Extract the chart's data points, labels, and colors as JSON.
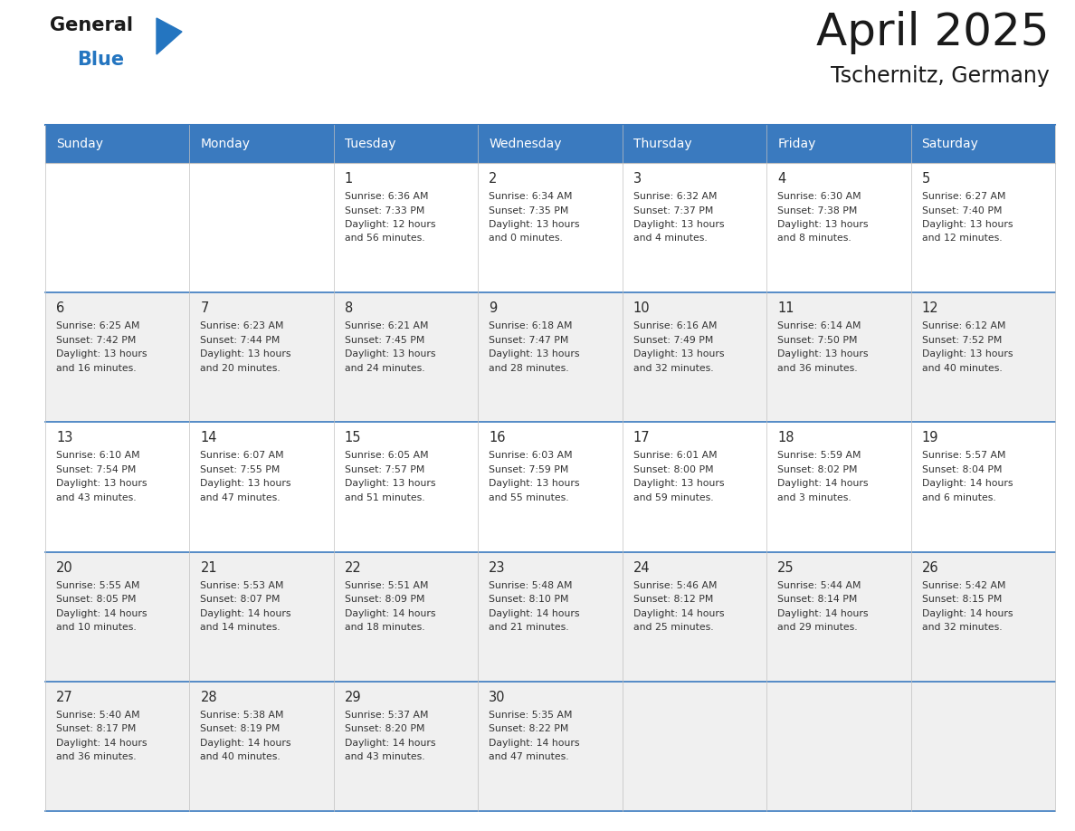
{
  "title": "April 2025",
  "subtitle": "Tschernitz, Germany",
  "header_bg_color": "#3a7abf",
  "header_text_color": "#ffffff",
  "week_bg_colors": [
    "#ffffff",
    "#f0f0f0",
    "#ffffff",
    "#f0f0f0",
    "#f0f0f0"
  ],
  "text_color": "#333333",
  "day_num_color": "#2a2a2a",
  "line_color_blue": "#3a7abf",
  "line_color_light": "#c0c0c0",
  "days_of_week": [
    "Sunday",
    "Monday",
    "Tuesday",
    "Wednesday",
    "Thursday",
    "Friday",
    "Saturday"
  ],
  "weeks": [
    [
      {
        "day": "",
        "info": ""
      },
      {
        "day": "",
        "info": ""
      },
      {
        "day": "1",
        "info": "Sunrise: 6:36 AM\nSunset: 7:33 PM\nDaylight: 12 hours\nand 56 minutes."
      },
      {
        "day": "2",
        "info": "Sunrise: 6:34 AM\nSunset: 7:35 PM\nDaylight: 13 hours\nand 0 minutes."
      },
      {
        "day": "3",
        "info": "Sunrise: 6:32 AM\nSunset: 7:37 PM\nDaylight: 13 hours\nand 4 minutes."
      },
      {
        "day": "4",
        "info": "Sunrise: 6:30 AM\nSunset: 7:38 PM\nDaylight: 13 hours\nand 8 minutes."
      },
      {
        "day": "5",
        "info": "Sunrise: 6:27 AM\nSunset: 7:40 PM\nDaylight: 13 hours\nand 12 minutes."
      }
    ],
    [
      {
        "day": "6",
        "info": "Sunrise: 6:25 AM\nSunset: 7:42 PM\nDaylight: 13 hours\nand 16 minutes."
      },
      {
        "day": "7",
        "info": "Sunrise: 6:23 AM\nSunset: 7:44 PM\nDaylight: 13 hours\nand 20 minutes."
      },
      {
        "day": "8",
        "info": "Sunrise: 6:21 AM\nSunset: 7:45 PM\nDaylight: 13 hours\nand 24 minutes."
      },
      {
        "day": "9",
        "info": "Sunrise: 6:18 AM\nSunset: 7:47 PM\nDaylight: 13 hours\nand 28 minutes."
      },
      {
        "day": "10",
        "info": "Sunrise: 6:16 AM\nSunset: 7:49 PM\nDaylight: 13 hours\nand 32 minutes."
      },
      {
        "day": "11",
        "info": "Sunrise: 6:14 AM\nSunset: 7:50 PM\nDaylight: 13 hours\nand 36 minutes."
      },
      {
        "day": "12",
        "info": "Sunrise: 6:12 AM\nSunset: 7:52 PM\nDaylight: 13 hours\nand 40 minutes."
      }
    ],
    [
      {
        "day": "13",
        "info": "Sunrise: 6:10 AM\nSunset: 7:54 PM\nDaylight: 13 hours\nand 43 minutes."
      },
      {
        "day": "14",
        "info": "Sunrise: 6:07 AM\nSunset: 7:55 PM\nDaylight: 13 hours\nand 47 minutes."
      },
      {
        "day": "15",
        "info": "Sunrise: 6:05 AM\nSunset: 7:57 PM\nDaylight: 13 hours\nand 51 minutes."
      },
      {
        "day": "16",
        "info": "Sunrise: 6:03 AM\nSunset: 7:59 PM\nDaylight: 13 hours\nand 55 minutes."
      },
      {
        "day": "17",
        "info": "Sunrise: 6:01 AM\nSunset: 8:00 PM\nDaylight: 13 hours\nand 59 minutes."
      },
      {
        "day": "18",
        "info": "Sunrise: 5:59 AM\nSunset: 8:02 PM\nDaylight: 14 hours\nand 3 minutes."
      },
      {
        "day": "19",
        "info": "Sunrise: 5:57 AM\nSunset: 8:04 PM\nDaylight: 14 hours\nand 6 minutes."
      }
    ],
    [
      {
        "day": "20",
        "info": "Sunrise: 5:55 AM\nSunset: 8:05 PM\nDaylight: 14 hours\nand 10 minutes."
      },
      {
        "day": "21",
        "info": "Sunrise: 5:53 AM\nSunset: 8:07 PM\nDaylight: 14 hours\nand 14 minutes."
      },
      {
        "day": "22",
        "info": "Sunrise: 5:51 AM\nSunset: 8:09 PM\nDaylight: 14 hours\nand 18 minutes."
      },
      {
        "day": "23",
        "info": "Sunrise: 5:48 AM\nSunset: 8:10 PM\nDaylight: 14 hours\nand 21 minutes."
      },
      {
        "day": "24",
        "info": "Sunrise: 5:46 AM\nSunset: 8:12 PM\nDaylight: 14 hours\nand 25 minutes."
      },
      {
        "day": "25",
        "info": "Sunrise: 5:44 AM\nSunset: 8:14 PM\nDaylight: 14 hours\nand 29 minutes."
      },
      {
        "day": "26",
        "info": "Sunrise: 5:42 AM\nSunset: 8:15 PM\nDaylight: 14 hours\nand 32 minutes."
      }
    ],
    [
      {
        "day": "27",
        "info": "Sunrise: 5:40 AM\nSunset: 8:17 PM\nDaylight: 14 hours\nand 36 minutes."
      },
      {
        "day": "28",
        "info": "Sunrise: 5:38 AM\nSunset: 8:19 PM\nDaylight: 14 hours\nand 40 minutes."
      },
      {
        "day": "29",
        "info": "Sunrise: 5:37 AM\nSunset: 8:20 PM\nDaylight: 14 hours\nand 43 minutes."
      },
      {
        "day": "30",
        "info": "Sunrise: 5:35 AM\nSunset: 8:22 PM\nDaylight: 14 hours\nand 47 minutes."
      },
      {
        "day": "",
        "info": ""
      },
      {
        "day": "",
        "info": ""
      },
      {
        "day": "",
        "info": ""
      }
    ]
  ],
  "fig_width": 11.88,
  "fig_height": 9.18,
  "dpi": 100
}
